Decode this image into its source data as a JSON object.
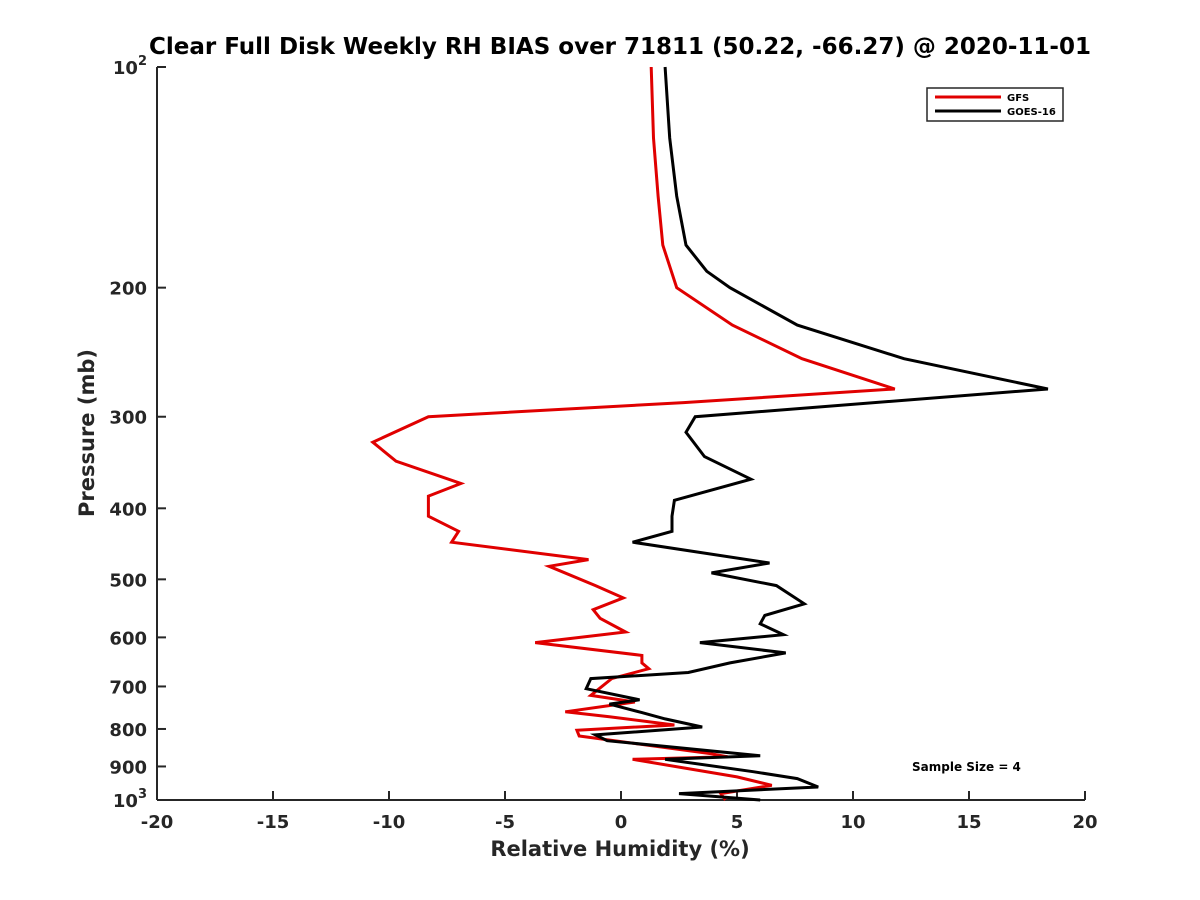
{
  "chart_data": {
    "type": "line",
    "title": "Clear Full Disk Weekly RH BIAS over 71811 (50.22, -66.27) @ 2020-11-01",
    "xlabel": "Relative Humidity (%)",
    "ylabel": "Pressure (mb)",
    "xlim": [
      -20,
      20
    ],
    "ylim": [
      100,
      1000
    ],
    "yscale": "log",
    "y_reversed": true,
    "grid": false,
    "legend_position": "top-right",
    "x_ticks": [
      -20,
      -15,
      -10,
      -5,
      0,
      5,
      10,
      15,
      20
    ],
    "x_tick_labels": [
      "-20",
      "-15",
      "-10",
      "-5",
      "0",
      "5",
      "10",
      "15",
      "20"
    ],
    "y_ticks": [
      100,
      200,
      300,
      400,
      500,
      600,
      700,
      800,
      900,
      1000
    ],
    "y_tick_labels": [
      {
        "base": "10",
        "sup": "2"
      },
      {
        "base": "200",
        "sup": ""
      },
      {
        "base": "300",
        "sup": ""
      },
      {
        "base": "400",
        "sup": ""
      },
      {
        "base": "500",
        "sup": ""
      },
      {
        "base": "600",
        "sup": ""
      },
      {
        "base": "700",
        "sup": ""
      },
      {
        "base": "800",
        "sup": ""
      },
      {
        "base": "900",
        "sup": ""
      },
      {
        "base": "10",
        "sup": "3"
      }
    ],
    "annotation": "Sample Size = 4",
    "series": [
      {
        "name": "GFS",
        "color": "#e00000",
        "points": [
          [
            1.3,
            100
          ],
          [
            1.4,
            125
          ],
          [
            1.6,
            150
          ],
          [
            1.8,
            175
          ],
          [
            2.4,
            200
          ],
          [
            4.8,
            225
          ],
          [
            7.8,
            250
          ],
          [
            11.8,
            275
          ],
          [
            2.7,
            287
          ],
          [
            -8.3,
            300
          ],
          [
            -10.7,
            325
          ],
          [
            -9.7,
            345
          ],
          [
            -6.9,
            370
          ],
          [
            -8.3,
            385
          ],
          [
            -8.3,
            410
          ],
          [
            -7.0,
            430
          ],
          [
            -7.3,
            445
          ],
          [
            -1.4,
            470
          ],
          [
            -3.1,
            480
          ],
          [
            -1.1,
            510
          ],
          [
            0.1,
            530
          ],
          [
            -1.2,
            550
          ],
          [
            -0.9,
            565
          ],
          [
            0.2,
            590
          ],
          [
            -3.7,
            610
          ],
          [
            0.9,
            635
          ],
          [
            0.9,
            650
          ],
          [
            1.2,
            662
          ],
          [
            -0.4,
            683
          ],
          [
            -1.3,
            720
          ],
          [
            0.6,
            735
          ],
          [
            -2.4,
            758
          ],
          [
            -0.5,
            770
          ],
          [
            2.3,
            790
          ],
          [
            -1.9,
            803
          ],
          [
            -1.8,
            818
          ],
          [
            3.9,
            865
          ],
          [
            4.6,
            873
          ],
          [
            0.5,
            880
          ],
          [
            5.0,
            930
          ],
          [
            6.5,
            955
          ],
          [
            4.3,
            980
          ],
          [
            4.5,
            1000
          ]
        ]
      },
      {
        "name": "GOES-16",
        "color": "#000000",
        "points": [
          [
            1.9,
            100
          ],
          [
            2.1,
            125
          ],
          [
            2.4,
            150
          ],
          [
            2.8,
            175
          ],
          [
            3.7,
            190
          ],
          [
            4.7,
            200
          ],
          [
            7.6,
            225
          ],
          [
            12.2,
            250
          ],
          [
            18.4,
            275
          ],
          [
            3.2,
            300
          ],
          [
            2.8,
            315
          ],
          [
            3.6,
            340
          ],
          [
            5.6,
            365
          ],
          [
            2.3,
            390
          ],
          [
            2.2,
            410
          ],
          [
            2.2,
            430
          ],
          [
            0.5,
            445
          ],
          [
            6.4,
            475
          ],
          [
            3.9,
            490
          ],
          [
            6.7,
            510
          ],
          [
            7.9,
            540
          ],
          [
            6.2,
            560
          ],
          [
            6.0,
            575
          ],
          [
            7.0,
            595
          ],
          [
            3.4,
            610
          ],
          [
            7.1,
            630
          ],
          [
            4.7,
            650
          ],
          [
            2.9,
            670
          ],
          [
            -1.3,
            683
          ],
          [
            -1.5,
            705
          ],
          [
            0.8,
            730
          ],
          [
            -0.5,
            740
          ],
          [
            0.9,
            760
          ],
          [
            1.9,
            775
          ],
          [
            3.5,
            795
          ],
          [
            -1.1,
            815
          ],
          [
            -0.6,
            830
          ],
          [
            6.0,
            870
          ],
          [
            1.9,
            880
          ],
          [
            5.7,
            915
          ],
          [
            7.6,
            935
          ],
          [
            8.5,
            960
          ],
          [
            2.5,
            980
          ],
          [
            6.0,
            1000
          ]
        ]
      }
    ]
  }
}
